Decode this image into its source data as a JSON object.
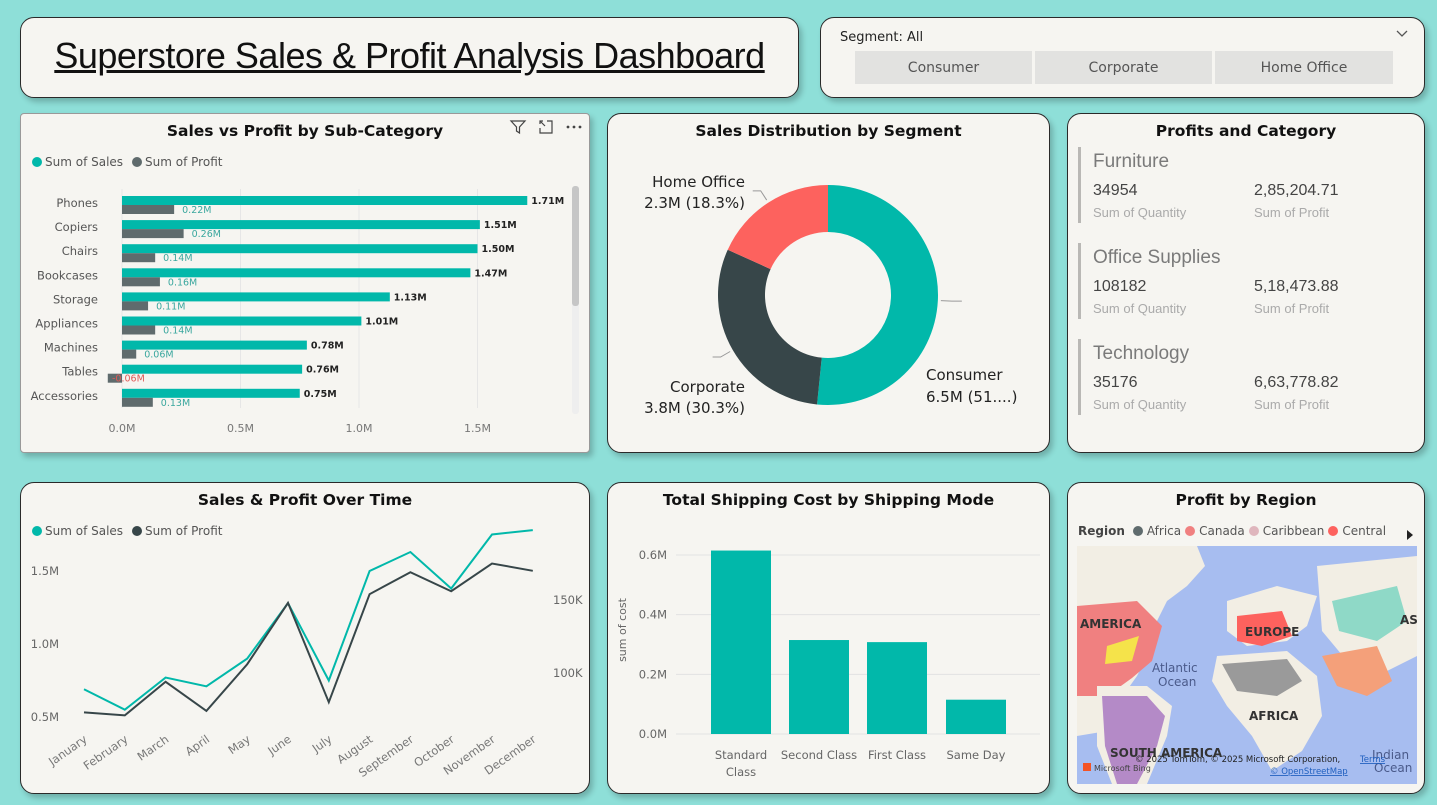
{
  "dashboard": {
    "title": "Superstore Sales & Profit Analysis Dashboard"
  },
  "slicer": {
    "header": "Segment: All",
    "options": [
      "Consumer",
      "Corporate",
      "Home Office"
    ]
  },
  "icons": [
    "filter-icon",
    "focus-mode-icon",
    "more-options-icon",
    "chevron-down-icon",
    "legend-next-arrow-icon"
  ],
  "colors": {
    "sales": "#01b8aa",
    "profit": "#5f6b6d",
    "profit_dark": "#374649",
    "home_office": "#fd625e",
    "negative": "#e05a56"
  },
  "bar_chart": {
    "title": "Sales vs Profit by Sub-Category",
    "legend": [
      "Sum of Sales",
      "Sum of Profit"
    ]
  },
  "donut_chart": {
    "title": "Sales Distribution by Segment"
  },
  "line_chart": {
    "title": "Sales & Profit Over Time",
    "legend": [
      "Sum of Sales",
      "Sum of Profit"
    ]
  },
  "column_chart": {
    "title": "Total Shipping Cost by Shipping Mode"
  },
  "profits_card": {
    "title": "Profits and Category",
    "rows": [
      {
        "category": "Furniture",
        "quantity": "34954",
        "quantity_label": "Sum of Quantity",
        "profit": "2,85,204.71",
        "profit_label": "Sum of Profit"
      },
      {
        "category": "Office Supplies",
        "quantity": "108182",
        "quantity_label": "Sum of Quantity",
        "profit": "5,18,473.88",
        "profit_label": "Sum of Profit"
      },
      {
        "category": "Technology",
        "quantity": "35176",
        "quantity_label": "Sum of Quantity",
        "profit": "6,63,778.82",
        "profit_label": "Sum of Profit"
      }
    ]
  },
  "map": {
    "title": "Profit by Region",
    "legend_title": "Region",
    "legend": [
      {
        "name": "Africa",
        "color": "#5f6b6d"
      },
      {
        "name": "Canada",
        "color": "#f08080"
      },
      {
        "name": "Caribbean",
        "color": "#dfb6bd"
      },
      {
        "name": "Central",
        "color": "#fd625e"
      }
    ],
    "labels": [
      "AMERICA",
      "EUROPE",
      "AS",
      "Atlantic",
      "Ocean",
      "AFRICA",
      "SOUTH AMERICA",
      "Indian",
      "Ocean"
    ],
    "attribution": "© 2025 TomTom, © 2025 Microsoft Corporation,",
    "terms": "Terms",
    "osm": "© OpenStreetMap",
    "bing": "Microsoft Bing"
  },
  "chart_data": [
    {
      "type": "bar",
      "title": "Sales vs Profit by Sub-Category",
      "categories": [
        "Phones",
        "Copiers",
        "Chairs",
        "Bookcases",
        "Storage",
        "Appliances",
        "Machines",
        "Tables",
        "Accessories"
      ],
      "series": [
        {
          "name": "Sum of Sales",
          "values": [
            1.71,
            1.51,
            1.5,
            1.47,
            1.13,
            1.01,
            0.78,
            0.76,
            0.75
          ],
          "labels": [
            "1.71M",
            "1.51M",
            "1.50M",
            "1.47M",
            "1.13M",
            "1.01M",
            "0.78M",
            "0.76M",
            "0.75M"
          ]
        },
        {
          "name": "Sum of Profit",
          "values": [
            0.22,
            0.26,
            0.14,
            0.16,
            0.11,
            0.14,
            0.06,
            -0.06,
            0.13
          ],
          "labels": [
            "0.22M",
            "0.26M",
            "0.14M",
            "0.16M",
            "0.11M",
            "0.14M",
            "0.06M",
            "-0.06M",
            "0.13M"
          ]
        }
      ],
      "x_ticks": [
        "0.0M",
        "0.5M",
        "1.0M",
        "1.5M"
      ],
      "xlim": [
        0,
        1.8
      ],
      "orientation": "horizontal",
      "legend_position": "top-left"
    },
    {
      "type": "pie",
      "title": "Sales Distribution by Segment",
      "labels": [
        "Consumer",
        "Corporate",
        "Home Office"
      ],
      "values": [
        6.5,
        3.8,
        2.3
      ],
      "percent": [
        51.4,
        30.3,
        18.3
      ],
      "value_labels": [
        "6.5M (51....)",
        "3.8M (30.3%)",
        "2.3M (18.3%)"
      ],
      "colors": [
        "#01b8aa",
        "#374649",
        "#fd625e"
      ],
      "donut": true
    },
    {
      "type": "line",
      "title": "Sales & Profit Over Time",
      "x": [
        "January",
        "February",
        "March",
        "April",
        "May",
        "June",
        "July",
        "August",
        "September",
        "October",
        "November",
        "December"
      ],
      "series": [
        {
          "name": "Sum of Sales",
          "axis": "left",
          "values": [
            0.69,
            0.55,
            0.77,
            0.71,
            0.9,
            1.28,
            0.75,
            1.5,
            1.63,
            1.38,
            1.75,
            1.78
          ]
        },
        {
          "name": "Sum of Profit",
          "axis": "right",
          "values": [
            73000,
            71000,
            94000,
            74000,
            106000,
            148000,
            80000,
            154000,
            169000,
            156000,
            175000,
            170000
          ]
        }
      ],
      "y_left_ticks": [
        "0.5M",
        "1.0M",
        "1.5M"
      ],
      "y_right_ticks": [
        "100K",
        "150K"
      ],
      "legend_position": "top-left"
    },
    {
      "type": "bar",
      "title": "Total Shipping Cost by Shipping Mode",
      "categories": [
        "Standard Class",
        "Second Class",
        "First Class",
        "Same Day"
      ],
      "values": [
        0.615,
        0.315,
        0.308,
        0.115
      ],
      "y_ticks": [
        "0.0M",
        "0.2M",
        "0.4M",
        "0.6M"
      ],
      "ylabel": "sum of cost",
      "ylim": [
        0,
        0.6
      ]
    }
  ]
}
